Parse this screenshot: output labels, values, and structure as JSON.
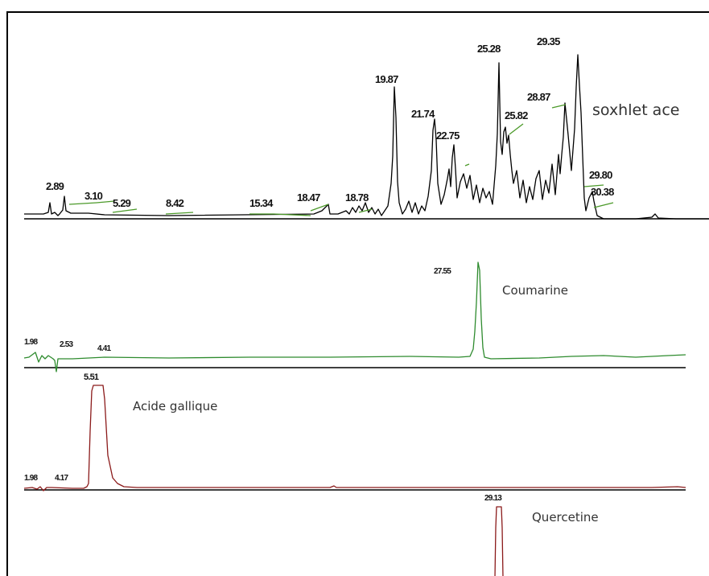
{
  "chart_data": [
    {
      "type": "line",
      "title": "soxhlet ace",
      "color": "#000000",
      "baseline_color": "#4c9a2a",
      "peaks_rt": [
        2.89,
        3.1,
        5.29,
        8.42,
        15.34,
        18.47,
        18.78,
        19.87,
        21.74,
        22.75,
        25.28,
        25.82,
        28.87,
        29.35,
        29.8,
        30.38
      ],
      "peak_labels": [
        "2.89",
        "3.10",
        "5.29",
        "8.42",
        "15.34",
        "18.47",
        "18.78",
        "19.87",
        "21.74",
        "22.75",
        "25.28",
        "25.82",
        "28.87",
        "29.35",
        "29.80",
        "30.38"
      ]
    },
    {
      "type": "line",
      "title": "Coumarine",
      "color": "#2e8b2e",
      "peaks_rt": [
        1.98,
        2.53,
        4.41,
        27.55
      ],
      "peak_labels": [
        "1.98",
        "2.53",
        "4.41",
        "27.55"
      ]
    },
    {
      "type": "line",
      "title": "Acide gallique",
      "color": "#8b1a1a",
      "peaks_rt": [
        1.98,
        4.17,
        5.51
      ],
      "peak_labels": [
        "1.98",
        "4.17",
        "5.51"
      ]
    },
    {
      "type": "line",
      "title": "Quercetine",
      "color": "#8b1a1a",
      "peaks_rt": [
        29.13
      ],
      "peak_labels": [
        "29.13"
      ]
    }
  ]
}
